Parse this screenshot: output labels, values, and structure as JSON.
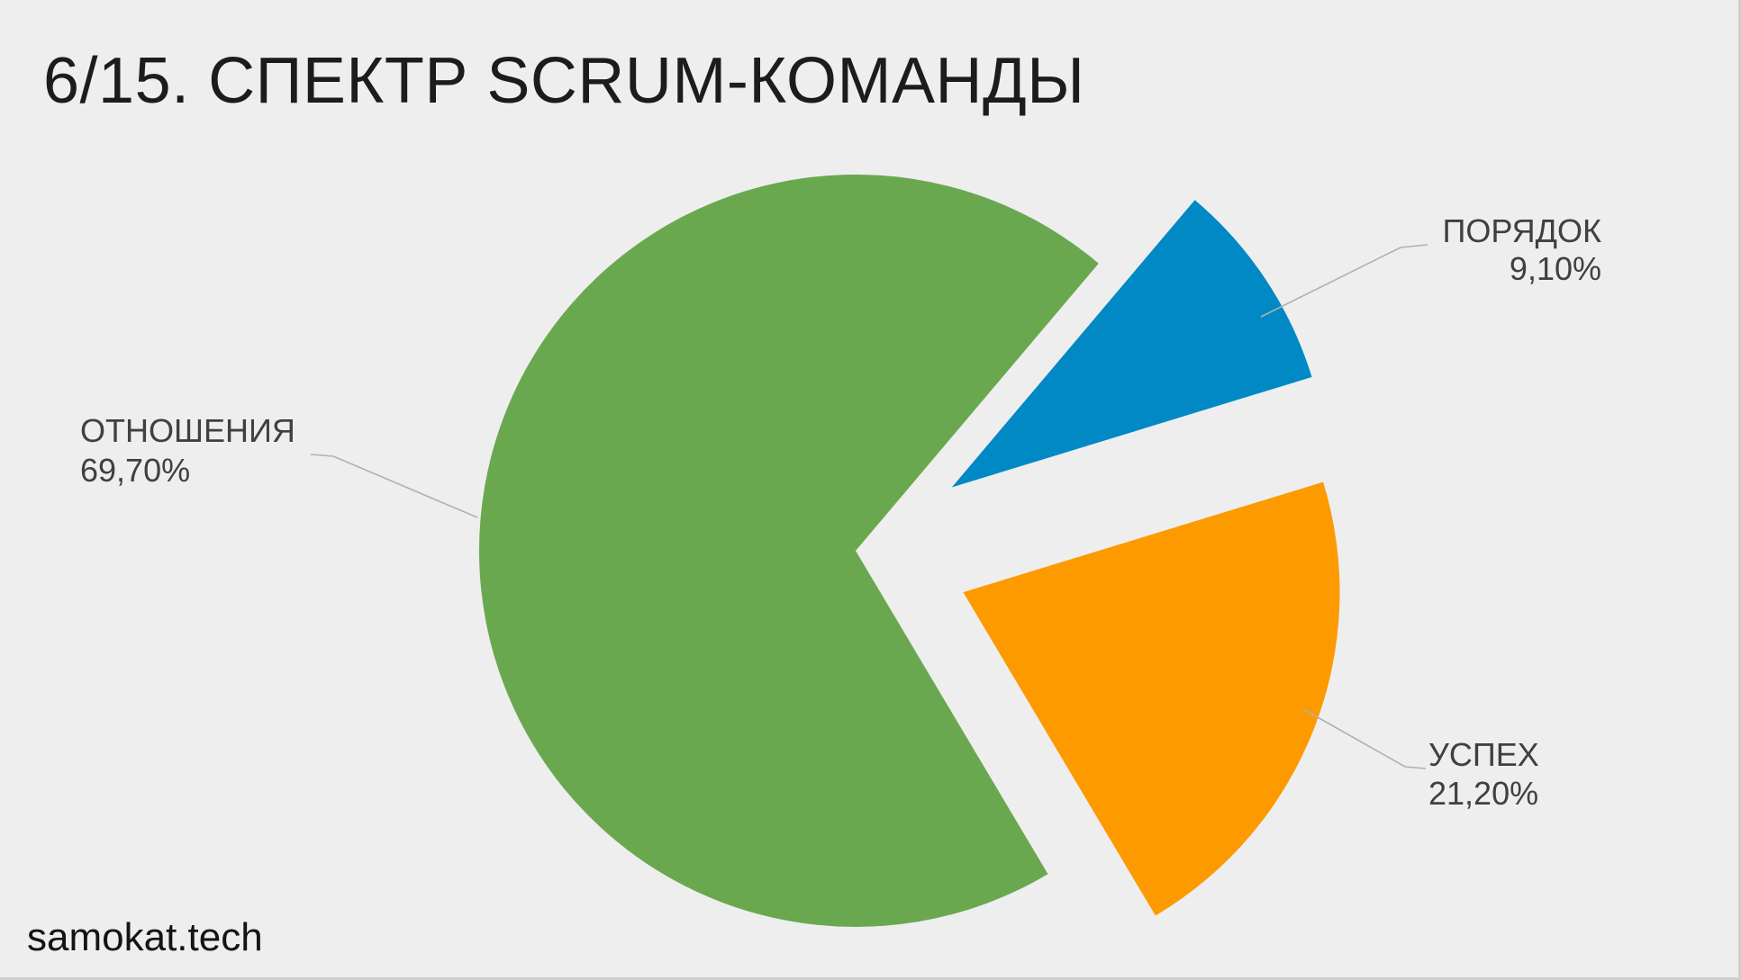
{
  "slide": {
    "title": "6/15. СПЕКТР SCRUM-КОМАНДЫ",
    "brand": "samokat.tech",
    "background": "#eeeeee"
  },
  "chart_data": {
    "type": "pie",
    "title": "6/15. СПЕКТР SCRUM-КОМАНДЫ",
    "exploded": true,
    "categories": [
      "ПОРЯДОК",
      "УСПЕХ",
      "ОТНОШЕНИЯ"
    ],
    "values": [
      9.1,
      21.2,
      69.7
    ],
    "value_labels": [
      "9,10%",
      "21,20%",
      "69,70%"
    ],
    "colors": [
      "#0089c4",
      "#fd9a00",
      "#6aa84f"
    ],
    "start_angle_deg": 40.2,
    "direction": "clockwise",
    "label_placement": "outside with leader lines"
  }
}
